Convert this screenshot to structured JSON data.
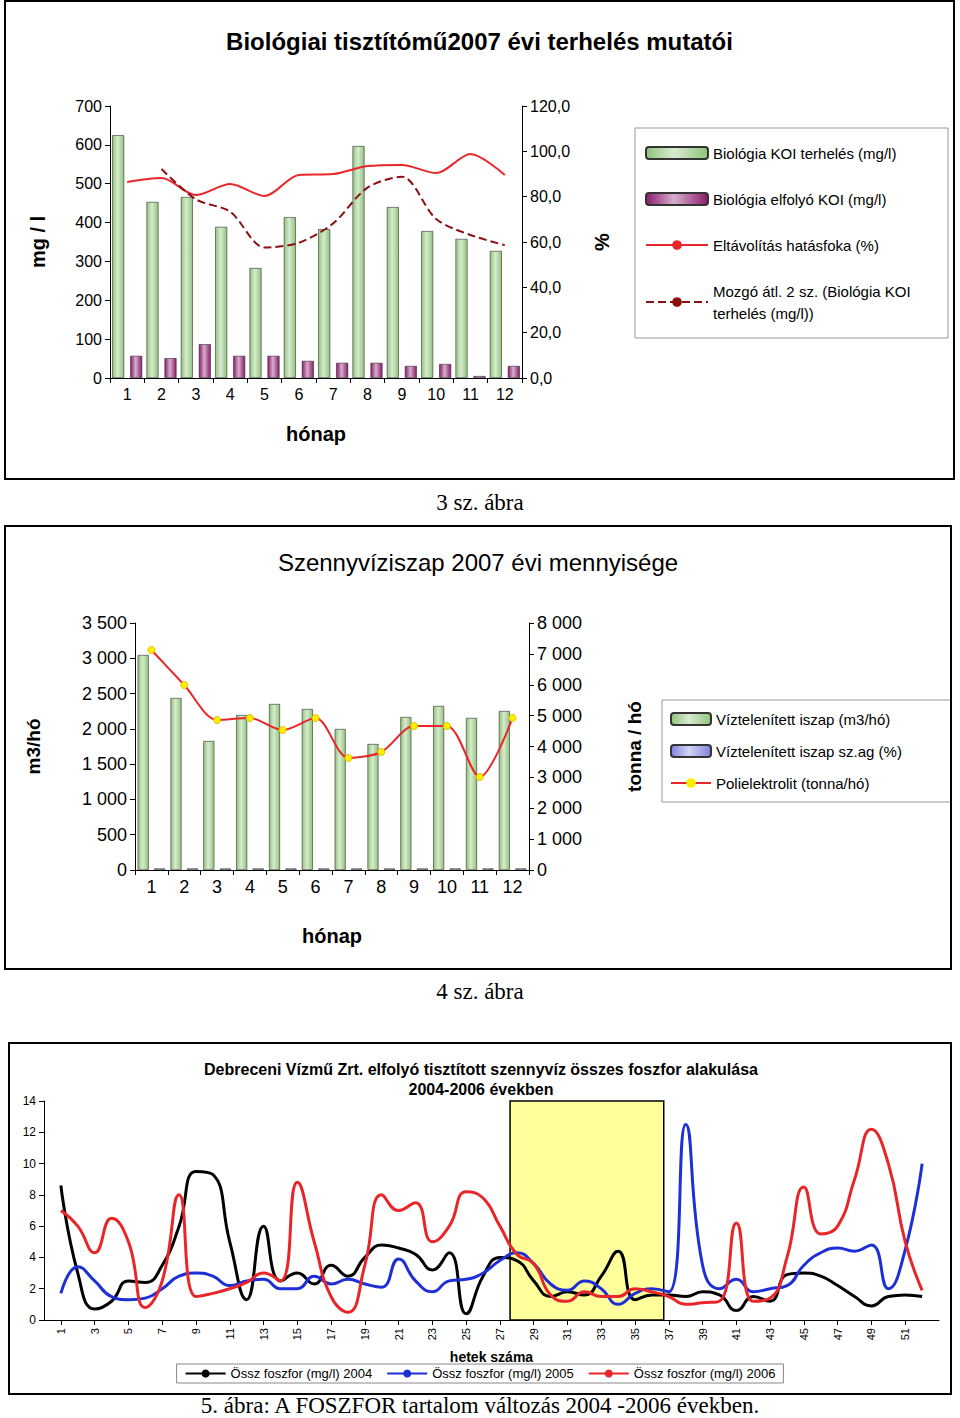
{
  "chart_data": [
    {
      "type": "bar",
      "title": "Biológiai tisztítómű2007 évi terhelés mutatói",
      "caption": "3 sz. ábra",
      "xlabel": "hónap",
      "ylabel": "mg / l",
      "y2label": "%",
      "categories": [
        "1",
        "2",
        "3",
        "4",
        "5",
        "6",
        "7",
        "8",
        "9",
        "10",
        "11",
        "12"
      ],
      "series": [
        {
          "name": "Biológia KOI terhelés (mg/l)",
          "type": "bar",
          "color": "#8fc47a",
          "values": [
            625,
            453,
            466,
            389,
            283,
            414,
            383,
            597,
            440,
            378,
            358,
            327
          ]
        },
        {
          "name": "Biológia elfolyó KOI (mg/l)",
          "type": "bar",
          "color": "#8b1a6b",
          "values": [
            57,
            51,
            87,
            57,
            57,
            44,
            39,
            39,
            31,
            36,
            5,
            31
          ]
        },
        {
          "name": "Eltávolítás hatásfoka (%)",
          "type": "line",
          "color": "#e8262a",
          "axis": "y2",
          "values": [
            86.5,
            88.2,
            80.7,
            85.6,
            80.3,
            89.6,
            90.0,
            93.5,
            94.0,
            90.4,
            98.8,
            89.6
          ]
        },
        {
          "name": "Mozgó átl. 2 sz. (Biológia KOI terhelés (mg/l))",
          "type": "line",
          "color": "#8b1010",
          "line_style": "dashed",
          "values": [
            null,
            538,
            460,
            428,
            336,
            348,
            398,
            490,
            518,
            409,
            368,
            342
          ]
        }
      ],
      "ylim": [
        0,
        700
      ],
      "yticks": [
        0,
        100,
        200,
        300,
        400,
        500,
        600,
        700
      ],
      "y2lim": [
        0,
        120
      ],
      "y2ticks": [
        {
          "value": 0,
          "label": "0,0"
        },
        {
          "value": 20,
          "label": "20,0"
        },
        {
          "value": 40,
          "label": "40,0"
        },
        {
          "value": 60,
          "label": "60,0"
        },
        {
          "value": 80,
          "label": "80,0"
        },
        {
          "value": 100,
          "label": "100,0"
        },
        {
          "value": 120,
          "label": "120,0"
        }
      ],
      "legend": "right",
      "grid": false
    },
    {
      "type": "bar",
      "title": "Szennyvíziszap 2007 évi mennyisége",
      "caption": "4 sz. ábra",
      "xlabel": "hónap",
      "ylabel": "m3/hó",
      "y2label": "tonna / hó",
      "categories": [
        "1",
        "2",
        "3",
        "4",
        "5",
        "6",
        "7",
        "8",
        "9",
        "10",
        "11",
        "12"
      ],
      "series": [
        {
          "name": "Víztelenített iszap (m3/hó)",
          "type": "bar",
          "color": "#8fc47a",
          "values": [
            3047,
            2437,
            1828,
            2196,
            2352,
            2281,
            1998,
            1785,
            2168,
            2324,
            2154,
            2253
          ]
        },
        {
          "name": "Víztelenített iszap sz.ag (%)",
          "type": "bar",
          "color": "#8080e0",
          "values": [
            22,
            22,
            22,
            22,
            22,
            22,
            22,
            22,
            22,
            22,
            22,
            22
          ]
        },
        {
          "name": "Polielektrolit (tonna/hó)",
          "type": "line",
          "color": "#e8262a",
          "axis": "y2",
          "marker": "circle",
          "values": [
            7126,
            5992,
            4858,
            4923,
            4534,
            4923,
            3628,
            3822,
            4664,
            4664,
            3012,
            4923
          ]
        }
      ],
      "ylim": [
        0,
        3500
      ],
      "yticks": [
        0,
        500,
        {
          "value": 1000,
          "label": "1 000"
        },
        {
          "value": 1500,
          "label": "1 500"
        },
        {
          "value": 2000,
          "label": "2 000"
        },
        {
          "value": 2500,
          "label": "2 500"
        },
        {
          "value": 3000,
          "label": "3 000"
        },
        {
          "value": 3500,
          "label": "3 500"
        }
      ],
      "y2lim": [
        0,
        8000
      ],
      "y2ticks": [
        0,
        {
          "value": 1000,
          "label": "1 000"
        },
        {
          "value": 2000,
          "label": "2 000"
        },
        {
          "value": 3000,
          "label": "3 000"
        },
        {
          "value": 4000,
          "label": "4 000"
        },
        {
          "value": 5000,
          "label": "5 000"
        },
        {
          "value": 6000,
          "label": "6 000"
        },
        {
          "value": 7000,
          "label": "7 000"
        },
        {
          "value": 8000,
          "label": "8 000"
        }
      ],
      "legend": "right",
      "grid": false
    },
    {
      "type": "line",
      "title": "Debreceni Vízmű Zrt. elfolyó tisztított szennyvíz összes foszfor alakulása\n2004-2006 években",
      "caption": "5. ábra: A FOSZFOR tartalom változás 2004 -2006 években.",
      "xlabel": "hetek száma",
      "x": [
        1,
        2,
        3,
        4,
        5,
        6,
        7,
        8,
        9,
        10,
        11,
        12,
        13,
        14,
        15,
        16,
        17,
        18,
        19,
        20,
        21,
        22,
        23,
        24,
        25,
        26,
        27,
        28,
        29,
        30,
        31,
        32,
        33,
        34,
        35,
        36,
        37,
        38,
        39,
        40,
        41,
        42,
        43,
        44,
        45,
        46,
        47,
        48,
        49,
        50,
        51,
        52
      ],
      "series": [
        {
          "name": "Össz foszfor (mg/l) 2004",
          "color": "#000000",
          "values": [
            8.6,
            3.0,
            0.7,
            1.2,
            2.5,
            2.4,
            3.5,
            6.0,
            9.5,
            9.3,
            5.0,
            1.3,
            6.0,
            2.5,
            3.0,
            2.3,
            3.5,
            2.8,
            4.0,
            4.8,
            4.6,
            4.2,
            3.2,
            4.3,
            0.4,
            2.8,
            4.0,
            3.8,
            2.5,
            1.5,
            1.8,
            1.6,
            2.8,
            4.4,
            1.3,
            1.6,
            1.6,
            1.5,
            1.8,
            1.6,
            0.6,
            1.5,
            1.2,
            2.9,
            3.0,
            2.8,
            2.2,
            1.5,
            0.9,
            1.5,
            1.6,
            1.5
          ]
        },
        {
          "name": "Össz foszfor (mg/l) 2005",
          "color": "#1f2fd6",
          "values": [
            1.7,
            3.4,
            2.5,
            1.5,
            1.3,
            1.4,
            2.0,
            2.8,
            3.0,
            2.8,
            2.2,
            2.5,
            2.6,
            2.0,
            2.0,
            2.8,
            2.3,
            2.6,
            2.3,
            2.1,
            3.9,
            2.5,
            1.8,
            2.5,
            2.6,
            3.0,
            3.8,
            4.3,
            3.6,
            2.3,
            1.9,
            2.5,
            2.0,
            1.0,
            1.7,
            2.0,
            1.8,
            12.5,
            3.5,
            2.0,
            2.6,
            1.8,
            2.0,
            2.2,
            3.5,
            4.3,
            4.6,
            4.4,
            4.8,
            2.0,
            4.5,
            10.0
          ]
        },
        {
          "name": "Össz foszfor (mg/l) 2006",
          "color": "#e8262a",
          "values": [
            7.0,
            6.0,
            4.3,
            6.5,
            5.0,
            0.8,
            2.5,
            8.0,
            1.5,
            1.7,
            2.0,
            2.4,
            3.0,
            2.5,
            8.8,
            5.0,
            1.5,
            0.5,
            3.5,
            8.0,
            7.0,
            7.5,
            5.0,
            6.0,
            8.2,
            7.8,
            6.0,
            4.2,
            3.6,
            1.6,
            1.2,
            1.8,
            1.5,
            1.5,
            2.0,
            1.8,
            1.5,
            1.0,
            1.1,
            1.2,
            6.2,
            1.2,
            1.4,
            4.0,
            8.5,
            5.5,
            6.0,
            9.0,
            12.2,
            10.0,
            5.0,
            1.9
          ]
        }
      ],
      "highlight_weeks": [
        27.6,
        36.7
      ],
      "xlim": [
        0,
        53
      ],
      "xticks": [
        1,
        3,
        5,
        7,
        9,
        11,
        13,
        15,
        17,
        19,
        21,
        23,
        25,
        27,
        29,
        31,
        33,
        35,
        37,
        39,
        41,
        43,
        45,
        47,
        49,
        51
      ],
      "ylim": [
        0,
        14
      ],
      "yticks": [
        0,
        2,
        4,
        6,
        8,
        10,
        12,
        14
      ],
      "legend": "bottom",
      "grid": false
    }
  ]
}
